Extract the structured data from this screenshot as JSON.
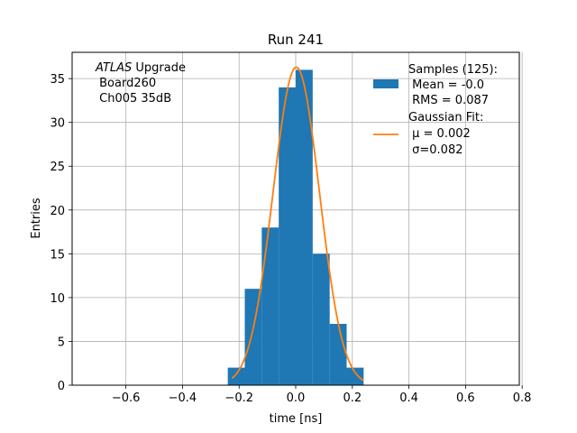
{
  "chart_data": {
    "type": "bar",
    "title": "Run 241",
    "xlabel": "time [ns]",
    "ylabel": "Entries",
    "xlim": [
      -0.79,
      0.79
    ],
    "ylim": [
      0,
      38
    ],
    "xticks": [
      -0.6,
      -0.4,
      -0.2,
      0.0,
      0.2,
      0.4,
      0.6,
      0.8
    ],
    "xtick_labels": [
      "−0.6",
      "−0.4",
      "−0.2",
      "0.0",
      "0.2",
      "0.4",
      "0.6",
      "0.8"
    ],
    "yticks": [
      0,
      5,
      10,
      15,
      20,
      25,
      30,
      35
    ],
    "grid": true,
    "legend_position": "top-right",
    "histogram": {
      "name_lines": [
        "Samples (125):",
        " Mean = -0.0",
        " RMS = 0.087"
      ],
      "color": "#1f77b4",
      "bin_edges": [
        -0.24,
        -0.18,
        -0.12,
        -0.06,
        0.0,
        0.06,
        0.12,
        0.18,
        0.24
      ],
      "counts": [
        2,
        11,
        18,
        34,
        36,
        15,
        7,
        2
      ]
    },
    "fit": {
      "name_lines": [
        "Gaussian Fit:",
        " μ = 0.002",
        " σ=0.082"
      ],
      "color": "#ff7f0e",
      "amplitude": 36.3,
      "mu": 0.002,
      "sigma": 0.082,
      "x_range": [
        -0.225,
        0.24
      ]
    },
    "annotation": {
      "italic": "ATLAS",
      "rest": " Upgrade",
      "line2": " Board260",
      "line3": " Ch005 35dB"
    }
  }
}
